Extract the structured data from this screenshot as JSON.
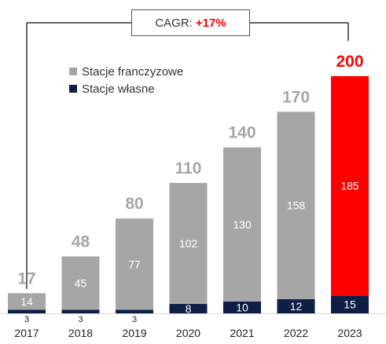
{
  "chart_data": {
    "type": "bar",
    "stacked": true,
    "categories": [
      "2017",
      "2018",
      "2019",
      "2020",
      "2021",
      "2022",
      "2023"
    ],
    "series": [
      {
        "name": "Stacje własne",
        "values": [
          3,
          3,
          3,
          8,
          10,
          12,
          15
        ],
        "labels": [
          "3",
          "3",
          "3",
          "8",
          "10",
          "12",
          "15"
        ]
      },
      {
        "name": "Stacje franczyzowe",
        "values": [
          14,
          45,
          77,
          102,
          130,
          158,
          185
        ],
        "labels": [
          "14",
          "45",
          "77",
          "102",
          "130",
          "158",
          "185"
        ]
      }
    ],
    "totals": [
      17,
      48,
      80,
      110,
      140,
      170,
      200
    ],
    "ylim": [
      0,
      200
    ],
    "grid": false,
    "legend_position": "top-left",
    "colors": {
      "own": "#0d1f45",
      "franchise": "#a6a6a6",
      "highlight": "#ff0000",
      "total_label": "#a6a6a6",
      "highlight_total_label": "#ff0000"
    },
    "cagr": {
      "label": "CAGR:",
      "value": "+17%"
    }
  }
}
